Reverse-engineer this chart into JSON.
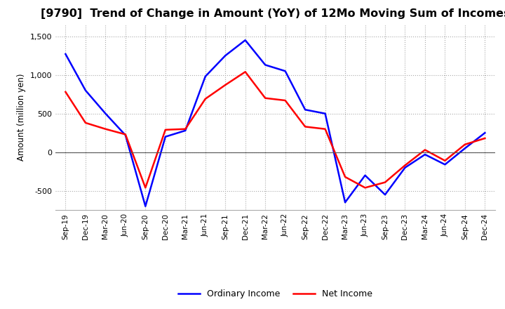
{
  "title": "[9790]  Trend of Change in Amount (YoY) of 12Mo Moving Sum of Incomes",
  "ylabel": "Amount (million yen)",
  "x_labels": [
    "Sep-19",
    "Dec-19",
    "Mar-20",
    "Jun-20",
    "Sep-20",
    "Dec-20",
    "Mar-21",
    "Jun-21",
    "Sep-21",
    "Dec-21",
    "Mar-22",
    "Jun-22",
    "Sep-22",
    "Dec-22",
    "Mar-23",
    "Jun-23",
    "Sep-23",
    "Dec-23",
    "Mar-24",
    "Jun-24",
    "Sep-24",
    "Dec-24"
  ],
  "ordinary_income": [
    1270,
    800,
    500,
    220,
    -700,
    200,
    280,
    980,
    1250,
    1450,
    1130,
    1050,
    550,
    500,
    -650,
    -300,
    -550,
    -200,
    -30,
    -160,
    50,
    250
  ],
  "net_income": [
    780,
    380,
    300,
    230,
    -460,
    290,
    300,
    690,
    870,
    1040,
    700,
    670,
    330,
    300,
    -320,
    -460,
    -390,
    -170,
    30,
    -110,
    100,
    180
  ],
  "ordinary_color": "#0000ff",
  "net_color": "#ff0000",
  "ylim": [
    -750,
    1650
  ],
  "yticks": [
    -500,
    0,
    500,
    1000,
    1500
  ],
  "background_color": "#ffffff",
  "grid_color": "#aaaaaa",
  "title_fontsize": 11.5
}
